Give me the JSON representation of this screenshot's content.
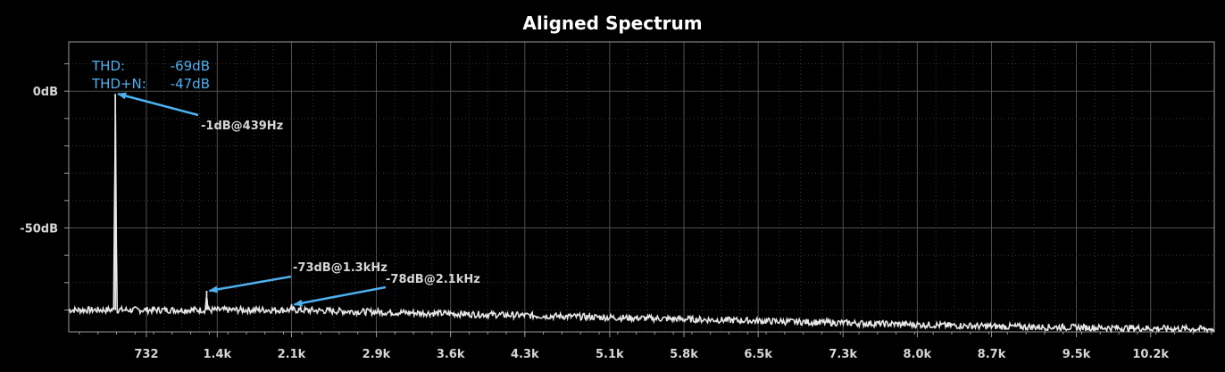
{
  "chart_data": {
    "type": "line",
    "title": "Aligned Spectrum",
    "xlim": [
      0,
      10800
    ],
    "ylim": [
      -88,
      18
    ],
    "y_ticks": [
      {
        "value": 0,
        "label": "0dB"
      },
      {
        "value": -50,
        "label": "-50dB"
      }
    ],
    "x_ticks": [
      {
        "value": 732,
        "label": "732"
      },
      {
        "value": 1400,
        "label": "1.4k"
      },
      {
        "value": 2100,
        "label": "2.1k"
      },
      {
        "value": 2900,
        "label": "2.9k"
      },
      {
        "value": 3600,
        "label": "3.6k"
      },
      {
        "value": 4300,
        "label": "4.3k"
      },
      {
        "value": 5100,
        "label": "5.1k"
      },
      {
        "value": 5800,
        "label": "5.8k"
      },
      {
        "value": 6500,
        "label": "6.5k"
      },
      {
        "value": 7300,
        "label": "7.3k"
      },
      {
        "value": 8000,
        "label": "8.0k"
      },
      {
        "value": 8700,
        "label": "8.7k"
      },
      {
        "value": 9500,
        "label": "9.5k"
      },
      {
        "value": 10200,
        "label": "10.2k"
      }
    ],
    "grid": true,
    "stats": [
      {
        "label": "THD:",
        "value": "-69dB"
      },
      {
        "label": "THD+N:",
        "value": "-47dB"
      }
    ],
    "peaks": [
      {
        "x": 439,
        "y": -1,
        "label": "-1dB@439Hz"
      },
      {
        "x": 1300,
        "y": -73,
        "label": "-73dB@1.3kHz"
      },
      {
        "x": 2100,
        "y": -78,
        "label": "-78dB@2.1kHz"
      }
    ],
    "noise_floor": [
      {
        "x": 0,
        "y": -80
      },
      {
        "x": 2100,
        "y": -80
      },
      {
        "x": 4300,
        "y": -82
      },
      {
        "x": 6500,
        "y": -84
      },
      {
        "x": 8700,
        "y": -86
      },
      {
        "x": 10800,
        "y": -87
      }
    ],
    "colors": {
      "trace": "#e6e6e6",
      "accent": "#4db0f0",
      "background": "#000000",
      "grid": "#4a4a4a"
    }
  }
}
